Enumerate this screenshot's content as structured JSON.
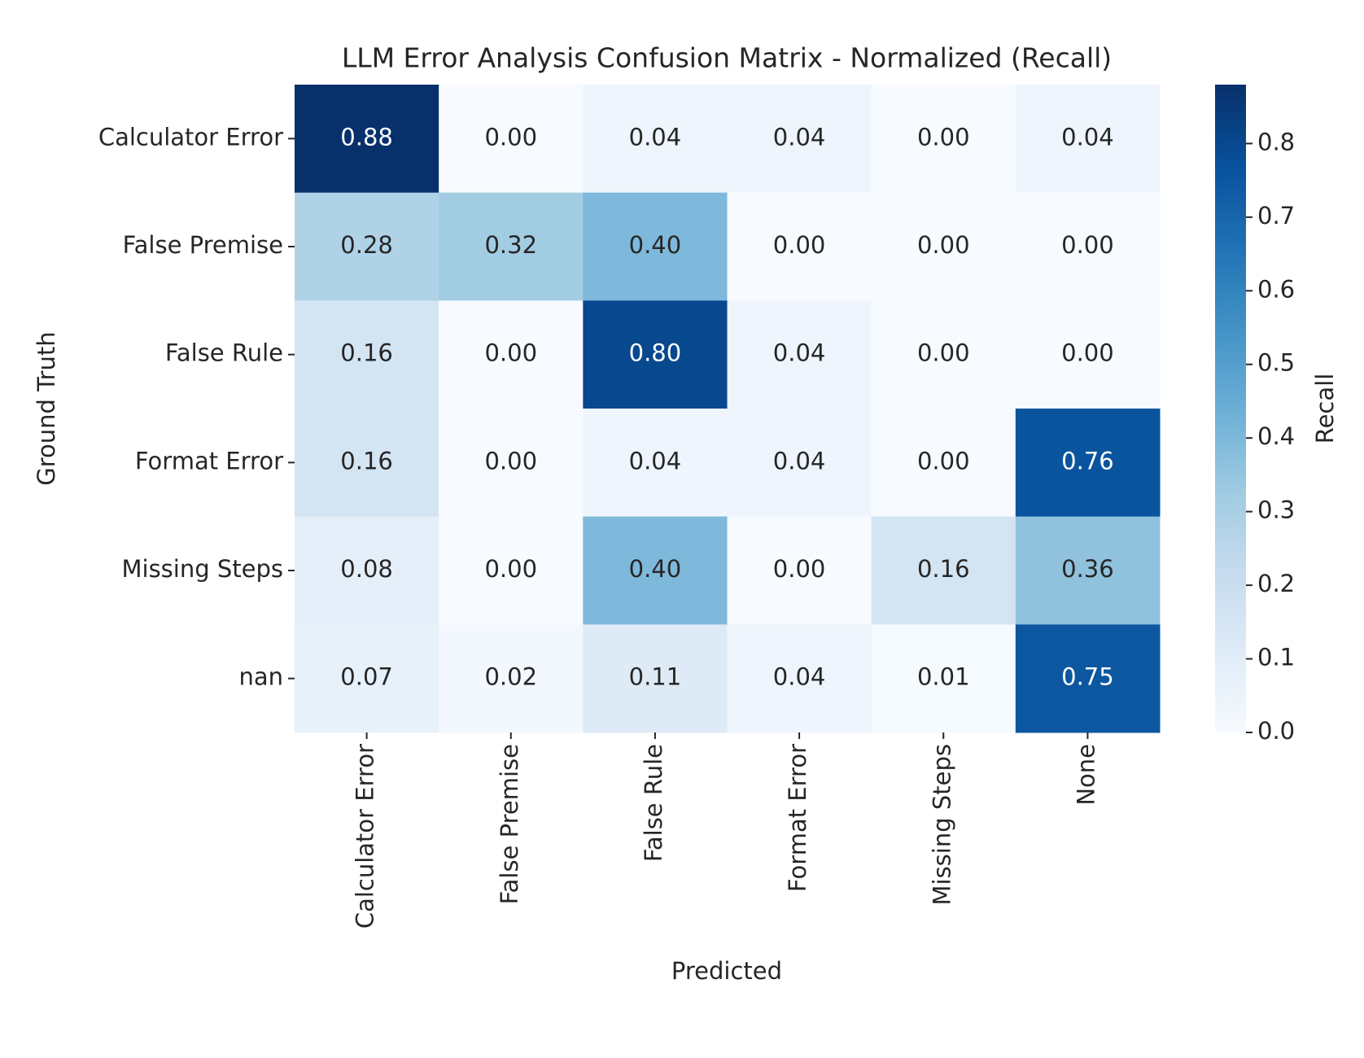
{
  "chart_data": {
    "type": "heatmap",
    "title": "LLM Error Analysis Confusion Matrix - Normalized (Recall)",
    "xlabel": "Predicted",
    "ylabel": "Ground Truth",
    "x_categories": [
      "Calculator Error",
      "False Premise",
      "False Rule",
      "Format Error",
      "Missing Steps",
      "None"
    ],
    "y_categories": [
      "Calculator Error",
      "False Premise",
      "False Rule",
      "Format Error",
      "Missing Steps",
      "nan"
    ],
    "values": [
      [
        0.88,
        0,
        0.04,
        0.04,
        0,
        0.04
      ],
      [
        0.28,
        0.32,
        0.4,
        0,
        0,
        0
      ],
      [
        0.16,
        0,
        0.8,
        0.04,
        0,
        0
      ],
      [
        0.16,
        0,
        0.04,
        0.04,
        0,
        0.76
      ],
      [
        0.08,
        0,
        0.4,
        0,
        0.16,
        0.36
      ],
      [
        0.07,
        0.02,
        0.11,
        0.04,
        0.01,
        0.75
      ]
    ],
    "value_labels": [
      [
        "0.88",
        "0.00",
        "0.04",
        "0.04",
        "0.00",
        "0.04"
      ],
      [
        "0.28",
        "0.32",
        "0.40",
        "0.00",
        "0.00",
        "0.00"
      ],
      [
        "0.16",
        "0.00",
        "0.80",
        "0.04",
        "0.00",
        "0.00"
      ],
      [
        "0.16",
        "0.00",
        "0.04",
        "0.04",
        "0.00",
        "0.76"
      ],
      [
        "0.08",
        "0.00",
        "0.40",
        "0.00",
        "0.16",
        "0.36"
      ],
      [
        "0.07",
        "0.02",
        "0.11",
        "0.04",
        "0.01",
        "0.75"
      ]
    ],
    "colormap": "Blues",
    "colorbar_label": "Recall",
    "zlim": [
      0,
      0.88
    ],
    "zticks": [
      {
        "value": 0,
        "label": "0.0"
      },
      0.1,
      0.2,
      0.3,
      0.4,
      0.5,
      0.6,
      0.7,
      0.8
    ]
  }
}
